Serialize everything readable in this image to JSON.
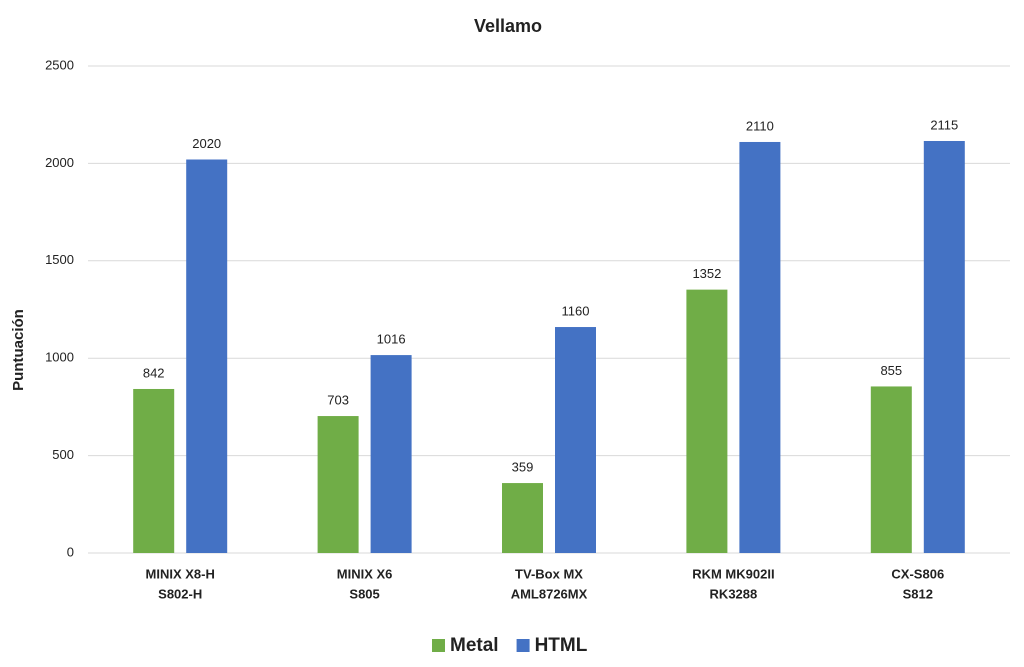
{
  "chart_data": {
    "type": "bar",
    "title": "Vellamo",
    "y_label": "Puntuación",
    "categories": [
      [
        "MINIX X8-H",
        "S802-H"
      ],
      [
        "MINIX X6",
        "S805"
      ],
      [
        "TV-Box MX",
        "AML8726MX"
      ],
      [
        "RKM MK902II",
        "RK3288"
      ],
      [
        "CX-S806",
        "S812"
      ]
    ],
    "series": [
      {
        "name": "Metal",
        "color": "#70ad47",
        "values": [
          842,
          703,
          359,
          1352,
          855
        ]
      },
      {
        "name": "HTML",
        "color": "#4472c4",
        "values": [
          2020,
          1016,
          1160,
          2110,
          2115
        ]
      }
    ],
    "ylim": [
      0,
      2500
    ],
    "yticks": [
      0,
      500,
      1000,
      1500,
      2000,
      2500
    ],
    "grid": true,
    "legend": "bottom"
  }
}
